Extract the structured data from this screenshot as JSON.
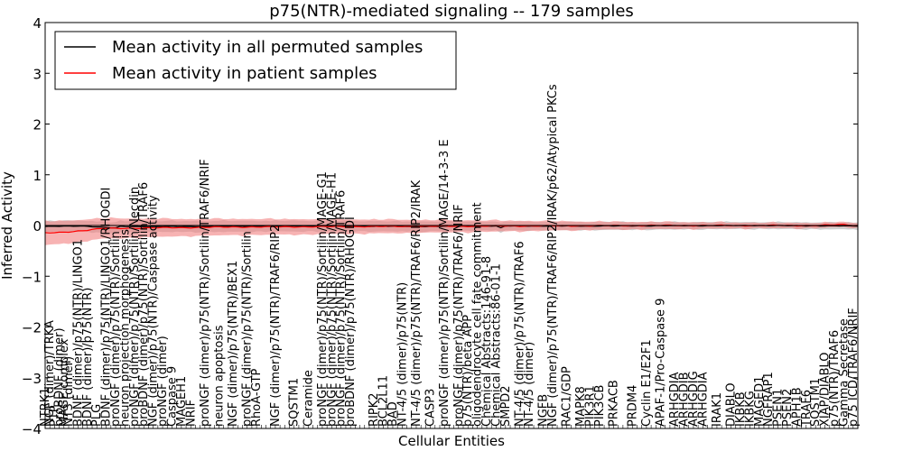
{
  "chart_data": {
    "type": "line",
    "title": "p75(NTR)-mediated signaling -- 179 samples",
    "xlabel": "Cellular Entities",
    "ylabel": "Inferred Activity",
    "ylim": [
      -4,
      4
    ],
    "yticks": [
      -4,
      -3,
      -2,
      -1,
      0,
      1,
      2,
      3,
      4
    ],
    "grid": false,
    "legend_position": "top-left",
    "n_points": 174,
    "series": [
      {
        "name": "Mean activity in all permuted samples",
        "color": "#000000",
        "band_color": "#bfbfbf",
        "mean_profile": [
          [
            0,
            -0.02
          ],
          [
            8,
            -0.01
          ],
          [
            15,
            -0.05
          ],
          [
            16,
            -0.02
          ],
          [
            30,
            -0.02
          ],
          [
            60,
            -0.01
          ],
          [
            80,
            -0.02
          ],
          [
            96,
            -0.01
          ],
          [
            97,
            -0.05
          ],
          [
            98,
            -0.01
          ],
          [
            120,
            -0.01
          ],
          [
            150,
            0.0
          ],
          [
            173,
            -0.01
          ]
        ],
        "band_halfwidth_profile": [
          [
            0,
            0.1
          ],
          [
            40,
            0.1
          ],
          [
            80,
            0.09
          ],
          [
            120,
            0.07
          ],
          [
            150,
            0.06
          ],
          [
            173,
            0.06
          ]
        ]
      },
      {
        "name": "Mean activity in patient samples",
        "color": "#ff0000",
        "band_color": "#f28080",
        "mean_profile": [
          [
            0,
            -0.15
          ],
          [
            3,
            -0.14
          ],
          [
            8,
            -0.1
          ],
          [
            12,
            -0.06
          ],
          [
            20,
            -0.05
          ],
          [
            40,
            -0.03
          ],
          [
            70,
            -0.02
          ],
          [
            100,
            -0.01
          ],
          [
            130,
            0.0
          ],
          [
            165,
            0.0
          ],
          [
            170,
            0.02
          ],
          [
            173,
            0.0
          ]
        ],
        "band_halfwidth_profile": [
          [
            0,
            0.23
          ],
          [
            10,
            0.2
          ],
          [
            30,
            0.16
          ],
          [
            60,
            0.14
          ],
          [
            90,
            0.11
          ],
          [
            120,
            0.07
          ],
          [
            150,
            0.05
          ],
          [
            173,
            0.04
          ]
        ]
      }
    ],
    "entities": [
      {
        "i": 0,
        "label": "NTRK1"
      },
      {
        "i": 1,
        "label": "NGF (dimer)/TRKA"
      },
      {
        "i": 2,
        "label": "PTP"
      },
      {
        "i": 3,
        "label": "proBDNF (dimer)"
      },
      {
        "i": 4,
        "label": "MAGE complex"
      },
      {
        "i": 5,
        "label": "NT3 (dimer)"
      },
      {
        "i": 7,
        "label": "BDNF (dimer)/p75(NTR)/LINGO1"
      },
      {
        "i": 9,
        "label": "BDNF (dimer)/p75(NTR)"
      },
      {
        "i": 11,
        "label": "PLG"
      },
      {
        "i": 13,
        "label": "BDNF (dimer)/p75(NTR)/LINGO1/RHOGDI"
      },
      {
        "i": 15,
        "label": "proNGF (dimer)/p75(NTR)/Sortilin"
      },
      {
        "i": 17,
        "label": "neuron projection morphogenesis"
      },
      {
        "i": 19,
        "label": "proNGF (dimer)/p75(NTR)/Sortilin/Necdin"
      },
      {
        "i": 21,
        "label": "proBDNF (dimer)/p75(NTR)/Sortilin/TRAF6"
      },
      {
        "i": 23,
        "label": "NGF (dimer)/p75(NTR)/Caspase activity"
      },
      {
        "i": 25,
        "label": "proNGF (dimer)"
      },
      {
        "i": 27,
        "label": "Caspase 9"
      },
      {
        "i": 29,
        "label": "MAGEH1"
      },
      {
        "i": 31,
        "label": "NRIF"
      },
      {
        "i": 34,
        "label": "proNGF (dimer)/p75(NTR)/Sortilin/TRAF6/NRIF"
      },
      {
        "i": 37,
        "label": "neuron apoptosis"
      },
      {
        "i": 40,
        "label": "NGF (dimer)/p75(NTR)/BEX1"
      },
      {
        "i": 43,
        "label": "proNGF (dimer)/p75(NTR)/Sortilin"
      },
      {
        "i": 45,
        "label": "RhoA-GTP"
      },
      {
        "i": 49,
        "label": "NGF (dimer)/p75(NTR)/TRAF6/RIP2"
      },
      {
        "i": 53,
        "label": "SQSTM1"
      },
      {
        "i": 56,
        "label": "Ceramide"
      },
      {
        "i": 59,
        "label": "proNGF (dimer)/p75(NTR)/Sortilin/MAGE-G1"
      },
      {
        "i": 61,
        "label": "proNGF (dimer)/p75(NTR)/Sortilin/MAGE-H1"
      },
      {
        "i": 63,
        "label": "proNGF (dimer)/p75(NTR)/Sortilin/TRAF6"
      },
      {
        "i": 65,
        "label": "proBDNF (dimer)/p75(NTR)/RHOGDI"
      },
      {
        "i": 70,
        "label": "RIPK2"
      },
      {
        "i": 72,
        "label": "BCL2L11"
      },
      {
        "i": 74,
        "label": "BAD"
      },
      {
        "i": 76,
        "label": "NT-4/5 (dimer)/p75(NTR)"
      },
      {
        "i": 79,
        "label": "NT-4/5 (dimer)/p75(NTR)/TRAF6/RIP2/IRAK"
      },
      {
        "i": 82,
        "label": "CASP3"
      },
      {
        "i": 85,
        "label": "proNGF (dimer)/p75(NTR)/Sortilin/MAGE/14-3-3 E"
      },
      {
        "i": 88,
        "label": "proNGF (dimer)/p75(NTR)/TRAF6/NRIF"
      },
      {
        "i": 90,
        "label": "p75(NTR)/beta APP"
      },
      {
        "i": 92,
        "label": "oligodendrocyte cell fate commitment"
      },
      {
        "i": 94,
        "label": "Chemical Abstracts:146-91-8"
      },
      {
        "i": 96,
        "label": "Chemical Abstracts:86-01-1"
      },
      {
        "i": 98,
        "label": "SMPD2"
      },
      {
        "i": 101,
        "label": "NT-4/5 (dimer)/p75(NTR)/TRAF6"
      },
      {
        "i": 103,
        "label": "NT-4/5 (dimer)"
      },
      {
        "i": 106,
        "label": "NGFB"
      },
      {
        "i": 108,
        "label": "NGF (dimer)/p75(NTR)/TRAF6/RIP2/IRAK/p62/Atypical PKCs"
      },
      {
        "i": 111,
        "label": "RAC1/GDP"
      },
      {
        "i": 114,
        "label": "MAPK8"
      },
      {
        "i": 116,
        "label": "PIK3R1"
      },
      {
        "i": 118,
        "label": "PIK3CB"
      },
      {
        "i": 121,
        "label": "PRKACB"
      },
      {
        "i": 125,
        "label": "PRDM4"
      },
      {
        "i": 128,
        "label": "Cyclin E1/E2F1"
      },
      {
        "i": 131,
        "label": "APAF-1/Pro-Caspase 9"
      },
      {
        "i": 134,
        "label": "ARHGDIA"
      },
      {
        "i": 136,
        "label": "ARHGDIB"
      },
      {
        "i": 138,
        "label": "ARHGDIG"
      },
      {
        "i": 140,
        "label": "ARHGDIA"
      },
      {
        "i": 143,
        "label": "IRAK1"
      },
      {
        "i": 146,
        "label": "DIABLO"
      },
      {
        "i": 148,
        "label": "IKBKB"
      },
      {
        "i": 150,
        "label": "IKBKG"
      },
      {
        "i": 152,
        "label": "MAGED1"
      },
      {
        "i": 154,
        "label": "NGFRAP1"
      },
      {
        "i": 156,
        "label": "PSEN1"
      },
      {
        "i": 158,
        "label": "PSEN2"
      },
      {
        "i": 160,
        "label": "APH1B"
      },
      {
        "i": 162,
        "label": "TRAF6"
      },
      {
        "i": 164,
        "label": "SQSTM1"
      },
      {
        "i": 166,
        "label": "XIAP/DIABLO"
      },
      {
        "i": 168,
        "label": "p75(NTR)/TRAF6"
      },
      {
        "i": 170,
        "label": "Gamma Secretase"
      },
      {
        "i": 172,
        "label": "p75 ICD/TRAF6/NRIF"
      }
    ]
  }
}
